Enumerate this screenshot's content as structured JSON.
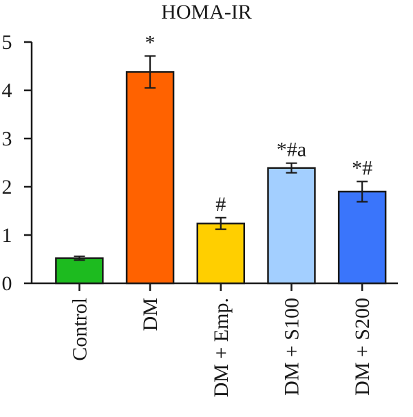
{
  "chart_data": {
    "type": "bar",
    "title": "HOMA-IR",
    "xlabel": "",
    "ylabel": "",
    "ylim": [
      0,
      5
    ],
    "yticks": [
      0,
      1,
      2,
      3,
      4,
      5
    ],
    "ytick_labels": [
      "0",
      "1",
      "2",
      "3",
      "4",
      "5"
    ],
    "categories": [
      "Control",
      "DM",
      "DM + Emp.",
      "DM + S100",
      "DM + S200"
    ],
    "values": [
      0.52,
      4.38,
      1.24,
      2.39,
      1.9
    ],
    "errors": [
      0.04,
      0.33,
      0.12,
      0.1,
      0.21
    ],
    "annotations": [
      "",
      "*",
      "#",
      "*#a",
      "*#"
    ],
    "colors": [
      "#1dbb1f",
      "#ff6200",
      "#ffcf00",
      "#a3cfff",
      "#3a75fb"
    ],
    "grid": false
  }
}
